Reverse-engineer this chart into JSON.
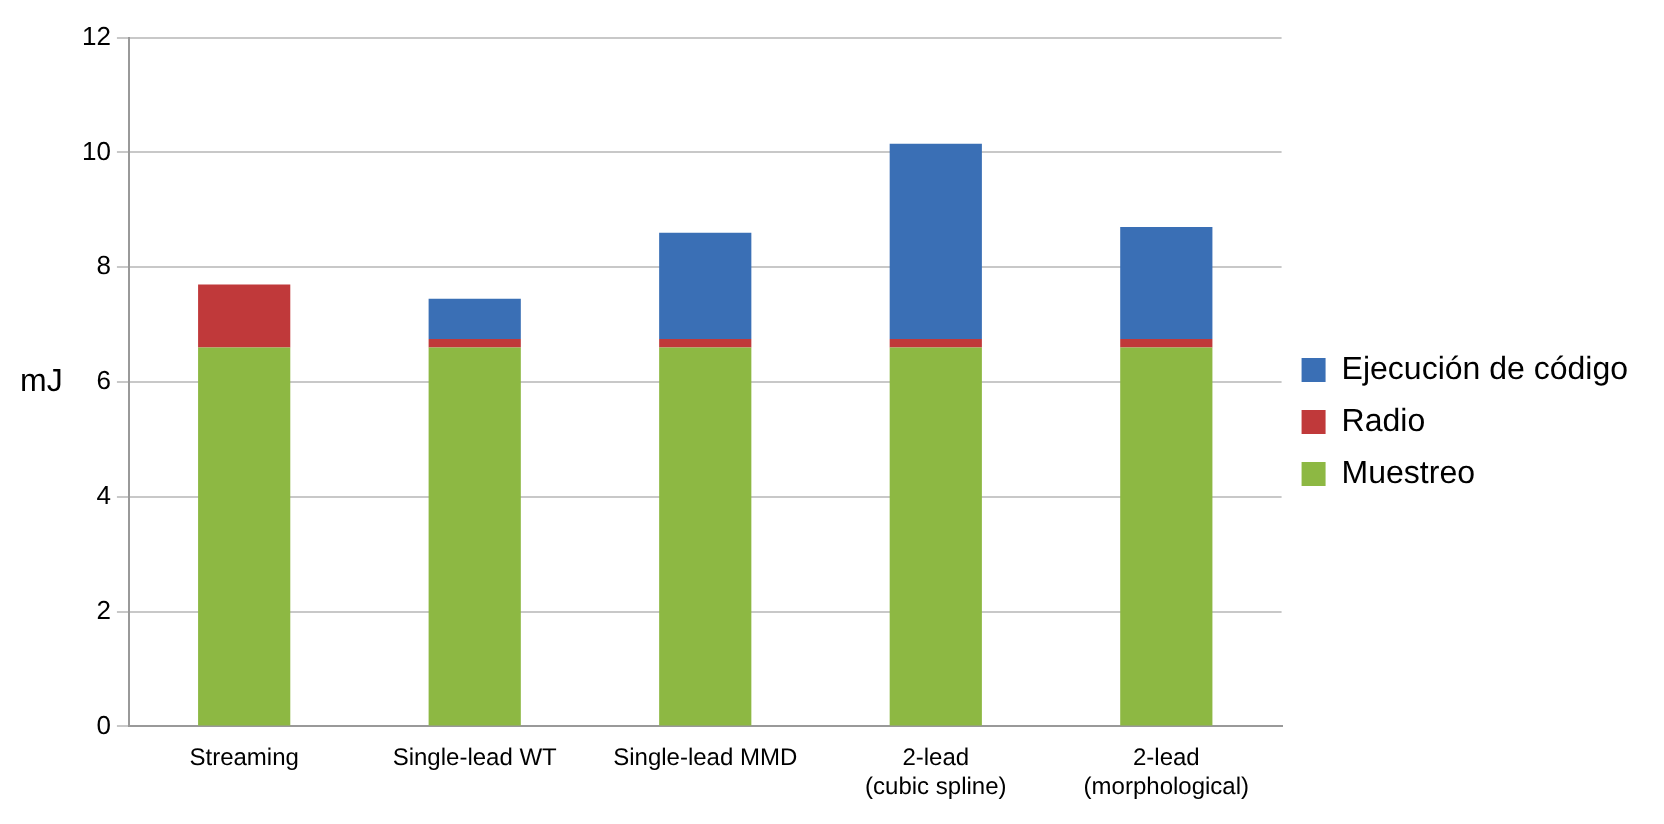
{
  "chart_data": {
    "type": "bar",
    "stacked": true,
    "ylabel": "mJ",
    "categories": [
      "Streaming",
      "Single-lead WT",
      "Single-lead MMD",
      "2-lead (cubic spline)",
      "2-lead (morphological)"
    ],
    "series": [
      {
        "name": "Muestreo",
        "color": "#8db843",
        "values": [
          6.6,
          6.6,
          6.6,
          6.6,
          6.6
        ]
      },
      {
        "name": "Radio",
        "color": "#c0393a",
        "values": [
          1.1,
          0.15,
          0.15,
          0.15,
          0.15
        ]
      },
      {
        "name": "Ejecución de código",
        "color": "#3a6fb5",
        "values": [
          null,
          0.7,
          1.85,
          3.4,
          1.95
        ]
      }
    ],
    "ylim": [
      0,
      12
    ],
    "yticks": [
      0,
      2,
      4,
      6,
      8,
      10,
      12
    ],
    "grid": "y",
    "legend": "right"
  }
}
